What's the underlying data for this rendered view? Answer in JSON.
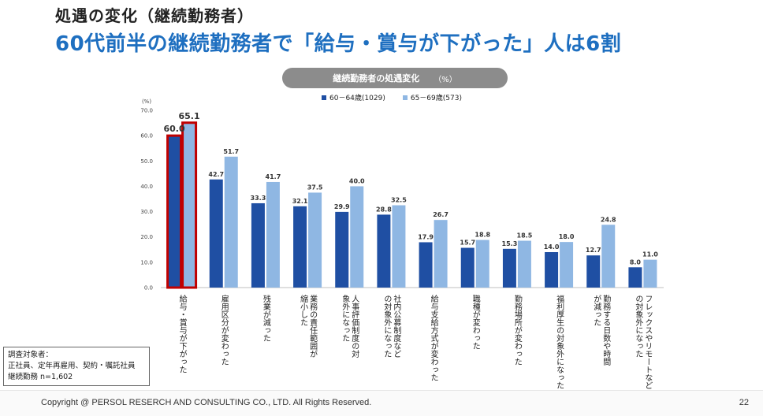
{
  "header": {
    "title": "処遇の変化（継続勤務者）",
    "subtitle": "60代前半の継続勤務者で「給与・賞与が下がった」人は6割"
  },
  "chart_title": {
    "text": "継続勤務者の処遇変化",
    "unit": "（%）"
  },
  "colors": {
    "series1": "#1f4fa3",
    "series2": "#8fb7e3",
    "highlight": "#c00000",
    "subtitle": "#1e6fc0"
  },
  "chart_data": {
    "type": "bar",
    "title": "継続勤務者の処遇変化",
    "ylabel": "(%)",
    "ylim": [
      0,
      70
    ],
    "yticks": [
      "0.0",
      "10.0",
      "20.0",
      "30.0",
      "40.0",
      "50.0",
      "60.0",
      "70.0"
    ],
    "categories": [
      [
        "給与・賞与が下がった"
      ],
      [
        "雇用区分が変わった"
      ],
      [
        "残業が減った"
      ],
      [
        "業務の責任範囲が",
        "縮小した"
      ],
      [
        "人事評価制度の対",
        "象外になった"
      ],
      [
        "社内公募制度など",
        "の対象外になった"
      ],
      [
        "給与支給方式が変わった"
      ],
      [
        "職種が変わった"
      ],
      [
        "勤務場所が変わった"
      ],
      [
        "福利厚生の対象外になった"
      ],
      [
        "勤務する日数や時間",
        "が減った"
      ],
      [
        "フレックスやリモートなど",
        "の対象外になった"
      ]
    ],
    "series": [
      {
        "name": "60－64歳(1029)",
        "values": [
          60.0,
          42.7,
          33.3,
          32.1,
          29.9,
          28.8,
          17.9,
          15.7,
          15.3,
          14.0,
          12.7,
          8.0
        ]
      },
      {
        "name": "65－69歳(573)",
        "values": [
          65.1,
          51.7,
          41.7,
          37.5,
          40.0,
          32.5,
          26.7,
          18.8,
          18.5,
          18.0,
          24.8,
          11.0
        ]
      }
    ],
    "highlighted_category_index": 0,
    "grid": false,
    "legend": "top"
  },
  "note": {
    "line1": "調査対象者：",
    "line2": "正社員、定年再雇用、契約・嘱託社員",
    "line3": "継続勤務 n=1,602"
  },
  "footer": {
    "copyright": "Copyright @ PERSOL RESERCH AND CONSULTING CO., LTD. All Rights Reserved.",
    "page": "22"
  }
}
